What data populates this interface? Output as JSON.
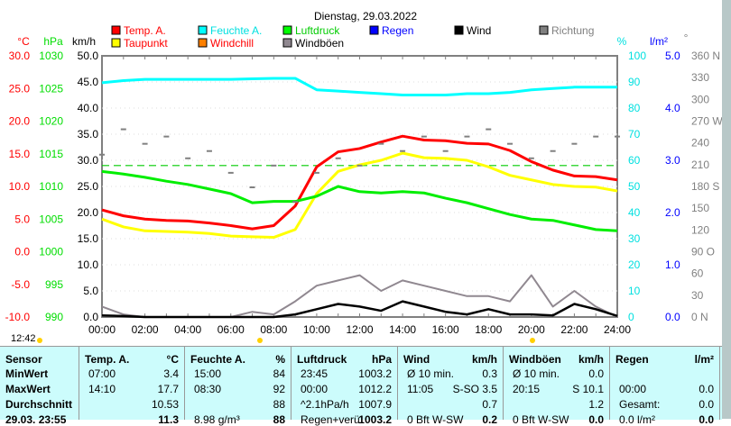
{
  "chart_data": {
    "type": "line",
    "title": "Dienstag, 29.03.2022",
    "legend": [
      {
        "label": "Temp. A.",
        "color": "#ff0000"
      },
      {
        "label": "Feuchte A.",
        "color": "#00ffff"
      },
      {
        "label": "Luftdruck",
        "color": "#00ff00"
      },
      {
        "label": "Regen",
        "color": "#0000ff"
      },
      {
        "label": "Wind",
        "color": "#000000"
      },
      {
        "label": "Richtung",
        "color": "#808080"
      },
      {
        "label": "Taupunkt",
        "color": "#ffff00"
      },
      {
        "label": "Windchill",
        "color": "#ff8000"
      },
      {
        "label": "Windböen",
        "color": "#908890"
      }
    ],
    "legend_text_colors": [
      "#ff0000",
      "#00e0e0",
      "#00cc00",
      "#0000ff",
      "#000000",
      "#808080",
      "#ff0000",
      "#ff0000",
      "#000000"
    ],
    "axes": {
      "temp": {
        "unit": "°C",
        "range": [
          -10,
          30
        ],
        "ticks": [
          "30.0",
          "25.0",
          "20.0",
          "15.0",
          "10.0",
          "5.0",
          "0.0",
          "-5.0",
          "-10.0"
        ]
      },
      "pressure": {
        "unit": "hPa",
        "range": [
          990,
          1030
        ],
        "ticks": [
          "1030",
          "1025",
          "1020",
          "1015",
          "1010",
          "1005",
          "1000",
          "995",
          "990"
        ]
      },
      "wind": {
        "unit": "km/h",
        "range": [
          0,
          50
        ],
        "ticks": [
          "50.0",
          "45.0",
          "40.0",
          "35.0",
          "30.0",
          "25.0",
          "20.0",
          "15.0",
          "10.0",
          "5.0",
          "0.0"
        ]
      },
      "humidity": {
        "unit": "%",
        "range": [
          0,
          100
        ],
        "ticks": [
          "100",
          "90",
          "80",
          "70",
          "60",
          "50",
          "40",
          "30",
          "20",
          "10",
          "0"
        ]
      },
      "rain": {
        "unit": "l/m²",
        "range": [
          0,
          5
        ],
        "ticks": [
          "5.0",
          "4.0",
          "3.0",
          "2.0",
          "1.0",
          "0.0"
        ]
      },
      "direction": {
        "unit": "°",
        "range": [
          0,
          360
        ],
        "ticks": [
          "360 N",
          "330",
          "300",
          "270 W",
          "240",
          "210",
          "180 S",
          "150",
          "120",
          "90 O",
          "60",
          "30",
          "0 N"
        ]
      }
    },
    "x_ticks": [
      "00:00",
      "02:00",
      "04:00",
      "06:00",
      "08:00",
      "10:00",
      "12:00",
      "14:00",
      "16:00",
      "18:00",
      "20:00",
      "22:00",
      "24:00"
    ],
    "x_hours": [
      0,
      1,
      2,
      3,
      4,
      5,
      6,
      7,
      8,
      9,
      10,
      11,
      12,
      13,
      14,
      15,
      16,
      17,
      18,
      19,
      20,
      21,
      22,
      23,
      24
    ],
    "series": [
      {
        "name": "Temp. A.",
        "axis": "temp",
        "color": "#ff0000",
        "values": [
          6.4,
          5.5,
          5.0,
          4.8,
          4.7,
          4.4,
          4.0,
          3.5,
          4.0,
          7.0,
          13.0,
          15.3,
          15.8,
          16.8,
          17.7,
          17.1,
          17.0,
          16.6,
          16.5,
          15.5,
          13.8,
          12.5,
          11.6,
          11.5,
          11.0
        ]
      },
      {
        "name": "Taupunkt",
        "axis": "temp",
        "color": "#ffff00",
        "values": [
          5.0,
          3.8,
          3.2,
          3.1,
          3.0,
          2.8,
          2.4,
          2.3,
          2.2,
          3.4,
          8.9,
          12.3,
          13.3,
          14.0,
          15.1,
          14.4,
          14.3,
          14.0,
          13.0,
          11.7,
          11.0,
          10.3,
          10.0,
          9.9,
          9.3
        ]
      },
      {
        "name": "Luftdruck",
        "axis": "pressure",
        "color": "#00ee00",
        "values": [
          1012.3,
          1011.9,
          1011.4,
          1010.8,
          1010.3,
          1009.6,
          1008.9,
          1007.5,
          1007.7,
          1007.7,
          1008.5,
          1010.0,
          1009.2,
          1009.0,
          1009.2,
          1009.0,
          1008.2,
          1007.5,
          1006.6,
          1005.7,
          1005.0,
          1004.8,
          1004.1,
          1003.4,
          1003.2
        ]
      },
      {
        "name": "Feuchte A.",
        "axis": "humidity",
        "color": "#00ffff",
        "values": [
          89.7,
          90.5,
          91,
          91,
          91,
          91,
          91,
          91.2,
          91.4,
          91.4,
          87,
          86.5,
          86,
          85.5,
          85,
          85,
          85,
          85.5,
          85.5,
          86,
          87,
          87.5,
          88,
          88,
          88
        ]
      },
      {
        "name": "Windböen",
        "axis": "wind",
        "color": "#908890",
        "values": [
          2,
          0.5,
          0,
          0,
          0,
          0,
          0,
          1,
          0.5,
          3,
          6,
          7,
          8,
          5,
          7,
          6,
          5,
          4,
          4,
          3,
          8,
          2,
          5,
          2,
          0
        ]
      },
      {
        "name": "Wind",
        "axis": "wind",
        "color": "#000000",
        "values": [
          0.3,
          0.2,
          0,
          0,
          0,
          0,
          0,
          0,
          0,
          0.5,
          1.5,
          2.5,
          2,
          1.2,
          3,
          2,
          1,
          0.5,
          1.5,
          0.5,
          0.5,
          0.3,
          2.5,
          1.5,
          0.2
        ]
      },
      {
        "name": "Richtung",
        "axis": "direction",
        "color": "#808080",
        "type": "scatter",
        "values": [
          225,
          260,
          240,
          250,
          220,
          230,
          200,
          180,
          210,
          160,
          200,
          220,
          210,
          240,
          230,
          250,
          230,
          250,
          260,
          240,
          220,
          230,
          240,
          250,
          250
        ]
      }
    ],
    "reference_line": {
      "axis": "pressure",
      "value": 1013.2,
      "color": "#00cc00",
      "style": "dashed"
    },
    "grid": true
  },
  "timestamp": "12:42",
  "table": {
    "columns": [
      {
        "h1": "Sensor",
        "h2": ""
      },
      {
        "h1": "Temp. A.",
        "h2": "°C"
      },
      {
        "h1": "Feuchte A.",
        "h2": "%"
      },
      {
        "h1": "Luftdruck",
        "h2": "hPa"
      },
      {
        "h1": "Wind",
        "h2": "km/h"
      },
      {
        "h1": "Windböen",
        "h2": "km/h"
      },
      {
        "h1": "Regen",
        "h2": "l/m²"
      }
    ],
    "rows": [
      {
        "label": "MinWert",
        "cells": [
          [
            "07:00",
            "3.4"
          ],
          [
            "15:00",
            "84"
          ],
          [
            "23:45",
            "1003.2"
          ],
          [
            "Ø 10 min.",
            "0.3"
          ],
          [
            "Ø 10 min.",
            "0.0"
          ],
          [
            "",
            ""
          ]
        ]
      },
      {
        "label": "MaxWert",
        "cells": [
          [
            "14:10",
            "17.7"
          ],
          [
            "08:30",
            "92"
          ],
          [
            "00:00",
            "1012.2"
          ],
          [
            "11:05",
            "S-SO 3.5"
          ],
          [
            "20:15",
            "S 10.1"
          ],
          [
            "00:00",
            "0.0"
          ]
        ]
      },
      {
        "label": "Durchschnitt",
        "cells": [
          [
            "",
            "10.53"
          ],
          [
            "",
            "88"
          ],
          [
            "^2.1hPa/h",
            "1007.9"
          ],
          [
            "",
            "0.7"
          ],
          [
            "",
            "1.2"
          ],
          [
            "Gesamt:",
            "0.0"
          ]
        ]
      },
      {
        "label": "29.03. 23:55",
        "cells": [
          [
            "",
            "11.3"
          ],
          [
            "8.98 g/m³",
            "88"
          ],
          [
            "Regen+verü",
            "1003.2"
          ],
          [
            "0 Bft W-SW",
            "0.2"
          ],
          [
            "0 Bft W-SW",
            "0.0"
          ],
          [
            "0.0 l/m²",
            "0.0"
          ]
        ]
      }
    ]
  }
}
